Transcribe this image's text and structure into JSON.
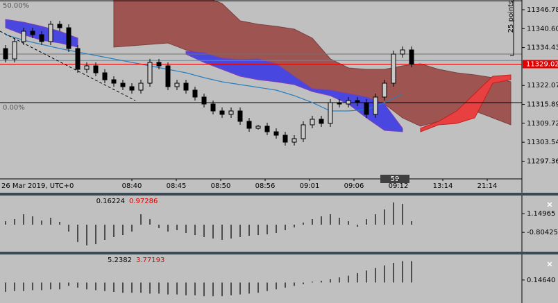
{
  "chart_data": {
    "type": "candlestick",
    "date_label": "26 Mar 2019, UTC+0",
    "x_labels": [
      "08:40",
      "08:45",
      "08:50",
      "08:56",
      "09:01",
      "09:06",
      "09:12",
      "13:14",
      "21:14"
    ],
    "timer_label": 59,
    "ylim": [
      11291.58,
      11349.95
    ],
    "yticks": [
      11346.78,
      {
        "value": 11340.6,
        "label": "11340.60"
      },
      11334.43,
      11322.07,
      11315.89,
      11309.72,
      11303.54,
      11297.36
    ],
    "current_price": 11329.02,
    "current_price_color": "#e00000",
    "candles": {
      "up_color": "#c8c8c8",
      "down_color": "#000000",
      "ohlc": [
        [
          11334.11,
          11335.24,
          11329.59,
          11330.72
        ],
        [
          11330.72,
          11337.51,
          11329.59,
          11336.38
        ],
        [
          11336.38,
          11340.9,
          11335.24,
          11339.77
        ],
        [
          11339.77,
          11340.9,
          11337.51,
          11338.64
        ],
        [
          11338.64,
          11339.77,
          11335.24,
          11336.38
        ],
        [
          11336.38,
          11343.16,
          11335.24,
          11342.03
        ],
        [
          11342.03,
          11343.16,
          11339.77,
          11340.9
        ],
        [
          11340.9,
          11342.03,
          11332.98,
          11334.11
        ],
        [
          11334.11,
          11335.24,
          11326.19,
          11327.33
        ],
        [
          11327.33,
          11329.59,
          11326.19,
          11328.46
        ],
        [
          11328.46,
          11329.59,
          11325.06,
          11326.19
        ],
        [
          11326.19,
          11327.33,
          11322.8,
          11323.93
        ],
        [
          11323.93,
          11325.06,
          11321.67,
          11322.8
        ],
        [
          11322.8,
          11323.93,
          11320.54,
          11321.67
        ],
        [
          11321.67,
          11322.8,
          11319.41,
          11320.54
        ],
        [
          11320.54,
          11323.93,
          11319.41,
          11322.8
        ],
        [
          11322.8,
          11330.72,
          11321.67,
          11329.59
        ],
        [
          11329.59,
          11330.72,
          11327.33,
          11328.46
        ],
        [
          11328.46,
          11329.59,
          11320.54,
          11321.67
        ],
        [
          11321.67,
          11323.93,
          11320.54,
          11322.8
        ],
        [
          11322.8,
          11323.93,
          11319.41,
          11320.54
        ],
        [
          11320.54,
          11321.67,
          11317.15,
          11318.28
        ],
        [
          11318.28,
          11319.41,
          11314.88,
          11316.01
        ],
        [
          11316.01,
          11317.15,
          11312.62,
          11313.75
        ],
        [
          11313.75,
          11314.88,
          11311.49,
          11312.62
        ],
        [
          11312.62,
          11314.88,
          11311.49,
          11313.75
        ],
        [
          11313.75,
          11314.88,
          11309.23,
          11310.36
        ],
        [
          11310.36,
          11311.49,
          11306.96,
          11308.09
        ],
        [
          11308.09,
          11309.23,
          11307.64,
          11308.77
        ],
        [
          11308.77,
          11309.91,
          11305.83,
          11306.96
        ],
        [
          11306.96,
          11308.09,
          11304.7,
          11305.83
        ],
        [
          11305.83,
          11306.96,
          11302.44,
          11303.57
        ],
        [
          11303.57,
          11305.83,
          11302.44,
          11304.7
        ],
        [
          11304.7,
          11310.36,
          11303.57,
          11309.23
        ],
        [
          11309.23,
          11312.17,
          11308.09,
          11311.04
        ],
        [
          11311.04,
          11312.17,
          11308.55,
          11309.68
        ],
        [
          11309.68,
          11317.6,
          11308.55,
          11316.47
        ],
        [
          11316.47,
          11317.6,
          11314.88,
          11316.01
        ],
        [
          11316.01,
          11318.28,
          11314.88,
          11317.15
        ],
        [
          11317.15,
          11318.28,
          11315.34,
          11316.47
        ],
        [
          11316.47,
          11317.6,
          11311.49,
          11312.62
        ],
        [
          11312.62,
          11319.41,
          11311.49,
          11318.28
        ],
        [
          11318.28,
          11323.93,
          11317.15,
          11322.8
        ],
        [
          11322.8,
          11333.43,
          11321.67,
          11332.3
        ],
        [
          11332.3,
          11334.79,
          11331.17,
          11333.66
        ],
        [
          11333.66,
          11334.79,
          11328.0,
          11329.02
        ]
      ]
    },
    "clouds": [
      {
        "color": "#9e5552",
        "edge": "#7a4040",
        "upper": [
          null,
          null,
          null,
          null,
          null,
          null,
          11351.08,
          11351.08,
          11351.08,
          11351.08,
          11351.08,
          11351.08,
          11348.82,
          11343.16,
          11342.03,
          11341.35,
          11340.45,
          11337.51,
          11330.72,
          11327.78,
          11327.33,
          11327.33,
          11328.46,
          11329.14,
          11327.33,
          11326.19,
          11325.52,
          11324.61,
          11323.25
        ],
        "lower": [
          null,
          null,
          null,
          null,
          null,
          null,
          11334.57,
          11335.02,
          11335.47,
          11335.92,
          11333.66,
          11332.3,
          11330.95,
          11330.49,
          11330.72,
          11329.14,
          11325.06,
          11320.99,
          11320.54,
          11319.41,
          11318.28,
          11316.01,
          11311.49,
          11308.77,
          11310.36,
          11312.62,
          11313.75,
          11311.49,
          11309.23
        ]
      },
      {
        "color": "#4848e0",
        "edge": "#8040b0",
        "upper": [
          11343.62,
          11342.71,
          11341.35,
          11339.77,
          11337.51,
          null,
          null,
          null,
          null,
          null,
          11333.21,
          11332.76,
          11330.95,
          11330.49,
          11330.72,
          11329.14,
          11325.06,
          11320.99,
          11320.54,
          11319.41,
          11318.28,
          11316.01,
          11308.09,
          null,
          null,
          null,
          null,
          null,
          null
        ],
        "lower": [
          11340.9,
          11338.64,
          11336.83,
          11335.92,
          11334.57,
          null,
          null,
          null,
          null,
          null,
          11332.3,
          11329.59,
          11327.33,
          11325.06,
          11323.93,
          11323.25,
          11322.35,
          11320.09,
          11318.73,
          11316.01,
          11311.49,
          11307.42,
          11306.96,
          null,
          null,
          null,
          null,
          null,
          null
        ]
      },
      {
        "color": "#e84040",
        "edge": "#c02020",
        "upper": [
          null,
          null,
          null,
          null,
          null,
          null,
          null,
          null,
          null,
          null,
          null,
          null,
          null,
          null,
          null,
          null,
          null,
          null,
          null,
          null,
          null,
          null,
          null,
          11308.09,
          11310.36,
          11313.75,
          11319.41,
          11325.06,
          11325.52
        ],
        "lower": [
          null,
          null,
          null,
          null,
          null,
          null,
          null,
          null,
          null,
          null,
          null,
          null,
          null,
          null,
          null,
          null,
          null,
          null,
          null,
          null,
          null,
          null,
          null,
          11306.96,
          11309.23,
          11309.68,
          11311.49,
          11322.8,
          11323.93
        ]
      }
    ],
    "lines": [
      {
        "color": "#2a7fc0",
        "values": [
          11338.64,
          11336.83,
          11335.47,
          11334.11,
          11332.98,
          11331.85,
          11330.72,
          11329.59,
          11328.46,
          11327.33,
          11326.19,
          11324.61,
          11323.25,
          11322.35,
          11321.44,
          11320.54,
          11318.73,
          11316.47,
          11313.75,
          11313.75,
          11314.2,
          11316.47,
          11319.41,
          null,
          null,
          null,
          null,
          null,
          null
        ]
      }
    ],
    "hlines": [
      {
        "value": 11332.3,
        "color": "#707070"
      },
      {
        "value": 11330.2,
        "color": "#4d8fb0"
      }
    ],
    "fib": {
      "color": "#000000",
      "levels": [
        {
          "label": "50.00%",
          "value": 11349.7
        },
        {
          "label": "0.00%",
          "value": 11316.47
        }
      ]
    },
    "range_note": "25 points",
    "indicators": [
      {
        "type": "histogram",
        "readouts": [
          0.16224,
          0.97286
        ],
        "readout_colors": [
          "#000000",
          "#e00000"
        ],
        "ylim": [
          -2.82,
          2.97
        ],
        "yticks": [
          1.14965,
          -0.80425
        ],
        "values": [
          0.36,
          0.58,
          1.09,
          0.87,
          0.43,
          0.72,
          0.29,
          -0.72,
          -1.81,
          -2.17,
          -2.03,
          -1.59,
          -1.3,
          -1.09,
          -0.72,
          1.09,
          0.58,
          -0.36,
          -0.72,
          -0.58,
          -0.87,
          -1.09,
          -1.3,
          -1.45,
          -1.59,
          -1.45,
          -1.3,
          -1.16,
          -1.09,
          -1.01,
          -0.87,
          -0.58,
          -0.29,
          0.22,
          0.58,
          0.87,
          1.09,
          0.72,
          0.36,
          -0.22,
          0.58,
          1.09,
          1.59,
          2.32,
          2.17,
          0.36
        ]
      },
      {
        "type": "histogram",
        "readouts": [
          5.2382,
          3.77193
        ],
        "readout_colors": [
          "#000000",
          "#e00000"
        ],
        "ylim": [
          -1.2,
          1.6
        ],
        "yticks": [
          {
            "value": 0.1464,
            "label": "0.14640"
          }
        ],
        "values": [
          -0.55,
          -0.5,
          -0.5,
          -0.45,
          -0.45,
          -0.4,
          -0.4,
          -0.2,
          -0.3,
          -0.4,
          -0.45,
          -0.5,
          -0.55,
          -0.6,
          -0.6,
          -0.6,
          -0.65,
          -0.65,
          -0.7,
          -0.7,
          -0.75,
          -0.75,
          -0.8,
          -0.8,
          -0.8,
          -0.75,
          -0.7,
          -0.65,
          -0.6,
          -0.5,
          -0.4,
          -0.3,
          -0.2,
          -0.1,
          0.05,
          0.1,
          0.2,
          0.3,
          0.4,
          0.55,
          0.7,
          0.85,
          1.0,
          1.15,
          1.25,
          1.25
        ]
      }
    ]
  }
}
